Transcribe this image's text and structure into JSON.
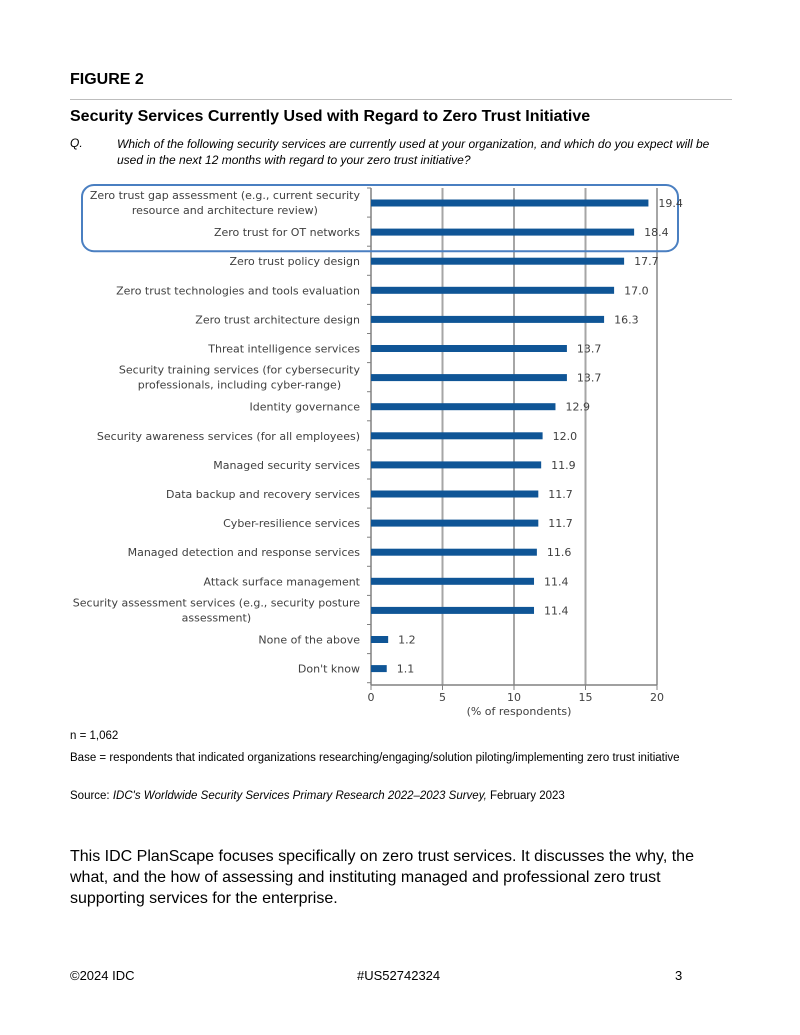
{
  "figure_label": "FIGURE 2",
  "figure_title": "Security Services Currently Used with Regard to Zero Trust Initiative",
  "question_label": "Q.",
  "question_text": "Which of the following security services are currently used at your organization, and which do you expect will be used in the next 12 months with regard to your zero trust initiative?",
  "chart_data": {
    "type": "bar",
    "orientation": "horizontal",
    "categories": [
      [
        "Zero trust gap assessment (e.g., current security",
        "resource and architecture review)"
      ],
      [
        "Zero trust for OT networks"
      ],
      [
        "Zero trust policy design"
      ],
      [
        "Zero trust technologies and tools evaluation"
      ],
      [
        "Zero trust architecture design"
      ],
      [
        "Threat intelligence services"
      ],
      [
        "Security training services (for cybersecurity",
        "professionals, including cyber-range)"
      ],
      [
        "Identity governance"
      ],
      [
        "Security awareness services (for all employees)"
      ],
      [
        "Managed security services"
      ],
      [
        "Data backup and recovery services"
      ],
      [
        "Cyber-resilience services"
      ],
      [
        "Managed detection and response services"
      ],
      [
        "Attack surface management"
      ],
      [
        "Security assessment services (e.g., security posture",
        "assessment)"
      ],
      [
        "None of the above"
      ],
      [
        "Don't know"
      ]
    ],
    "values": [
      19.4,
      18.4,
      17.7,
      17.0,
      16.3,
      13.7,
      13.7,
      12.9,
      12.0,
      11.9,
      11.7,
      11.7,
      11.6,
      11.4,
      11.4,
      1.2,
      1.1
    ],
    "value_labels": [
      "19.4",
      "18.4",
      "17.7",
      "17.0",
      "16.3",
      "13.7",
      "13.7",
      "12.9",
      "12.0",
      "11.9",
      "11.7",
      "11.7",
      "11.6",
      "11.4",
      "11.4",
      "1.2",
      "1.1"
    ],
    "xlim": [
      0,
      20
    ],
    "xticks": [
      "0",
      "5",
      "10",
      "15",
      "20"
    ],
    "xlabel": "(% of respondents)",
    "grid": true,
    "highlight_first_n": 2,
    "colors": {
      "bar": "#0f5596",
      "grid": "#a6a6a6",
      "highlight": "#4a7fc1",
      "text": "#404040"
    }
  },
  "notes": {
    "n": "n = 1,062",
    "base": "Base = respondents that indicated organizations researching/engaging/solution piloting/implementing zero trust initiative",
    "source_label": "Source: ",
    "source_italic": "IDC's Worldwide Security Services Primary Research 2022–2023 Survey,",
    "source_date": " February 2023"
  },
  "body_paragraph": "This IDC PlanScape focuses specifically on zero trust services. It discusses the why, the what, and the how of assessing and instituting managed and professional zero trust supporting services for the enterprise.",
  "footer": {
    "left": "©2024 IDC",
    "center": "#US52742324",
    "right": "3"
  }
}
